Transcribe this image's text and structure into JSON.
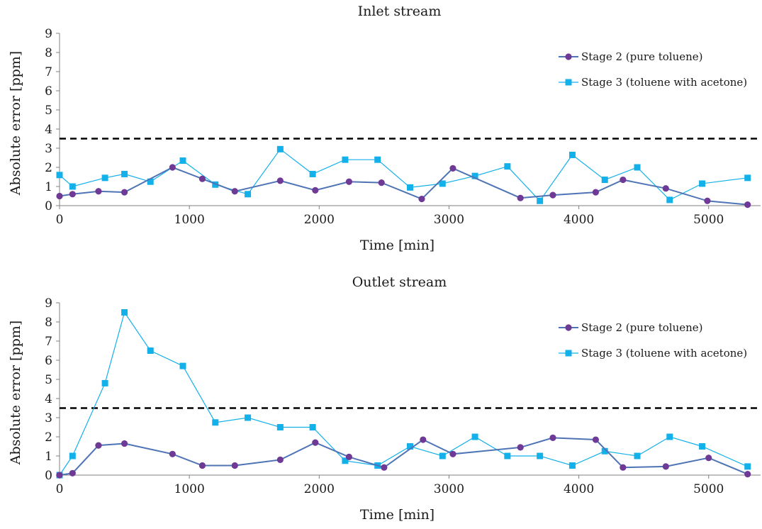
{
  "chart_data": [
    {
      "type": "line",
      "title": "Inlet stream",
      "xlabel": "Time [min]",
      "ylabel": "Absolute error [ppm]",
      "xlim": [
        0,
        5400
      ],
      "ylim": [
        0,
        9
      ],
      "xticks": [
        0,
        1000,
        2000,
        3000,
        4000,
        5000
      ],
      "yticks": [
        0,
        1,
        2,
        3,
        4,
        5,
        6,
        7,
        8,
        9
      ],
      "grid": false,
      "legend_position": "top-right",
      "reference_line": {
        "y": 3.5,
        "style": "dashed",
        "color": "#000000"
      },
      "series": [
        {
          "name": "Stage 2 (pure toluene)",
          "marker": "circle",
          "color": "#4f74b5",
          "marker_color": "#6e3a96",
          "x": [
            0,
            100,
            300,
            500,
            870,
            1100,
            1350,
            1700,
            1970,
            2230,
            2480,
            2790,
            3030,
            3550,
            3800,
            4130,
            4340,
            4670,
            4990,
            5300
          ],
          "y": [
            0.5,
            0.6,
            0.75,
            0.7,
            2.0,
            1.4,
            0.75,
            1.3,
            0.8,
            1.25,
            1.2,
            0.35,
            1.95,
            0.4,
            0.55,
            0.7,
            1.35,
            0.9,
            0.25,
            0.05
          ]
        },
        {
          "name": "Stage 3 (toluene with acetone)",
          "marker": "square",
          "color": "#13b0ea",
          "marker_color": "#13b0ea",
          "x": [
            0,
            100,
            350,
            500,
            700,
            950,
            1200,
            1450,
            1700,
            1950,
            2200,
            2450,
            2700,
            2950,
            3200,
            3450,
            3700,
            3950,
            4200,
            4450,
            4700,
            4950,
            5300
          ],
          "y": [
            1.6,
            1.0,
            1.45,
            1.65,
            1.25,
            2.35,
            1.1,
            0.6,
            2.95,
            1.65,
            2.4,
            2.4,
            0.95,
            1.15,
            1.55,
            2.05,
            0.25,
            2.65,
            1.35,
            2.0,
            0.3,
            1.15,
            1.45
          ]
        }
      ]
    },
    {
      "type": "line",
      "title": "Outlet stream",
      "xlabel": "Time [min]",
      "ylabel": "Absolute error [ppm]",
      "xlim": [
        0,
        5400
      ],
      "ylim": [
        0,
        9
      ],
      "xticks": [
        0,
        1000,
        2000,
        3000,
        4000,
        5000
      ],
      "yticks": [
        0,
        1,
        2,
        3,
        4,
        5,
        6,
        7,
        8,
        9
      ],
      "grid": false,
      "legend_position": "top-right",
      "reference_line": {
        "y": 3.5,
        "style": "dashed",
        "color": "#000000"
      },
      "series": [
        {
          "name": "Stage 2 (pure toluene)",
          "marker": "circle",
          "color": "#4f74b5",
          "marker_color": "#6e3a96",
          "x": [
            0,
            100,
            300,
            500,
            870,
            1100,
            1350,
            1700,
            1970,
            2230,
            2500,
            2800,
            3030,
            3550,
            3800,
            4130,
            4340,
            4670,
            5000,
            5300
          ],
          "y": [
            0.0,
            0.1,
            1.55,
            1.65,
            1.1,
            0.5,
            0.5,
            0.8,
            1.7,
            0.95,
            0.4,
            1.85,
            1.1,
            1.45,
            1.95,
            1.85,
            0.4,
            0.45,
            0.9,
            0.05
          ]
        },
        {
          "name": "Stage 3 (toluene with acetone)",
          "marker": "square",
          "color": "#13b0ea",
          "marker_color": "#13b0ea",
          "x": [
            0,
            100,
            350,
            500,
            700,
            950,
            1200,
            1450,
            1700,
            1950,
            2200,
            2450,
            2700,
            2950,
            3200,
            3450,
            3700,
            3950,
            4200,
            4450,
            4700,
            4950,
            5300
          ],
          "y": [
            0.0,
            1.0,
            4.8,
            8.5,
            6.5,
            5.7,
            2.75,
            3.0,
            2.5,
            2.5,
            0.75,
            0.5,
            1.5,
            1.0,
            2.0,
            1.0,
            1.0,
            0.5,
            1.25,
            1.0,
            2.0,
            1.5,
            0.45
          ]
        }
      ]
    }
  ]
}
